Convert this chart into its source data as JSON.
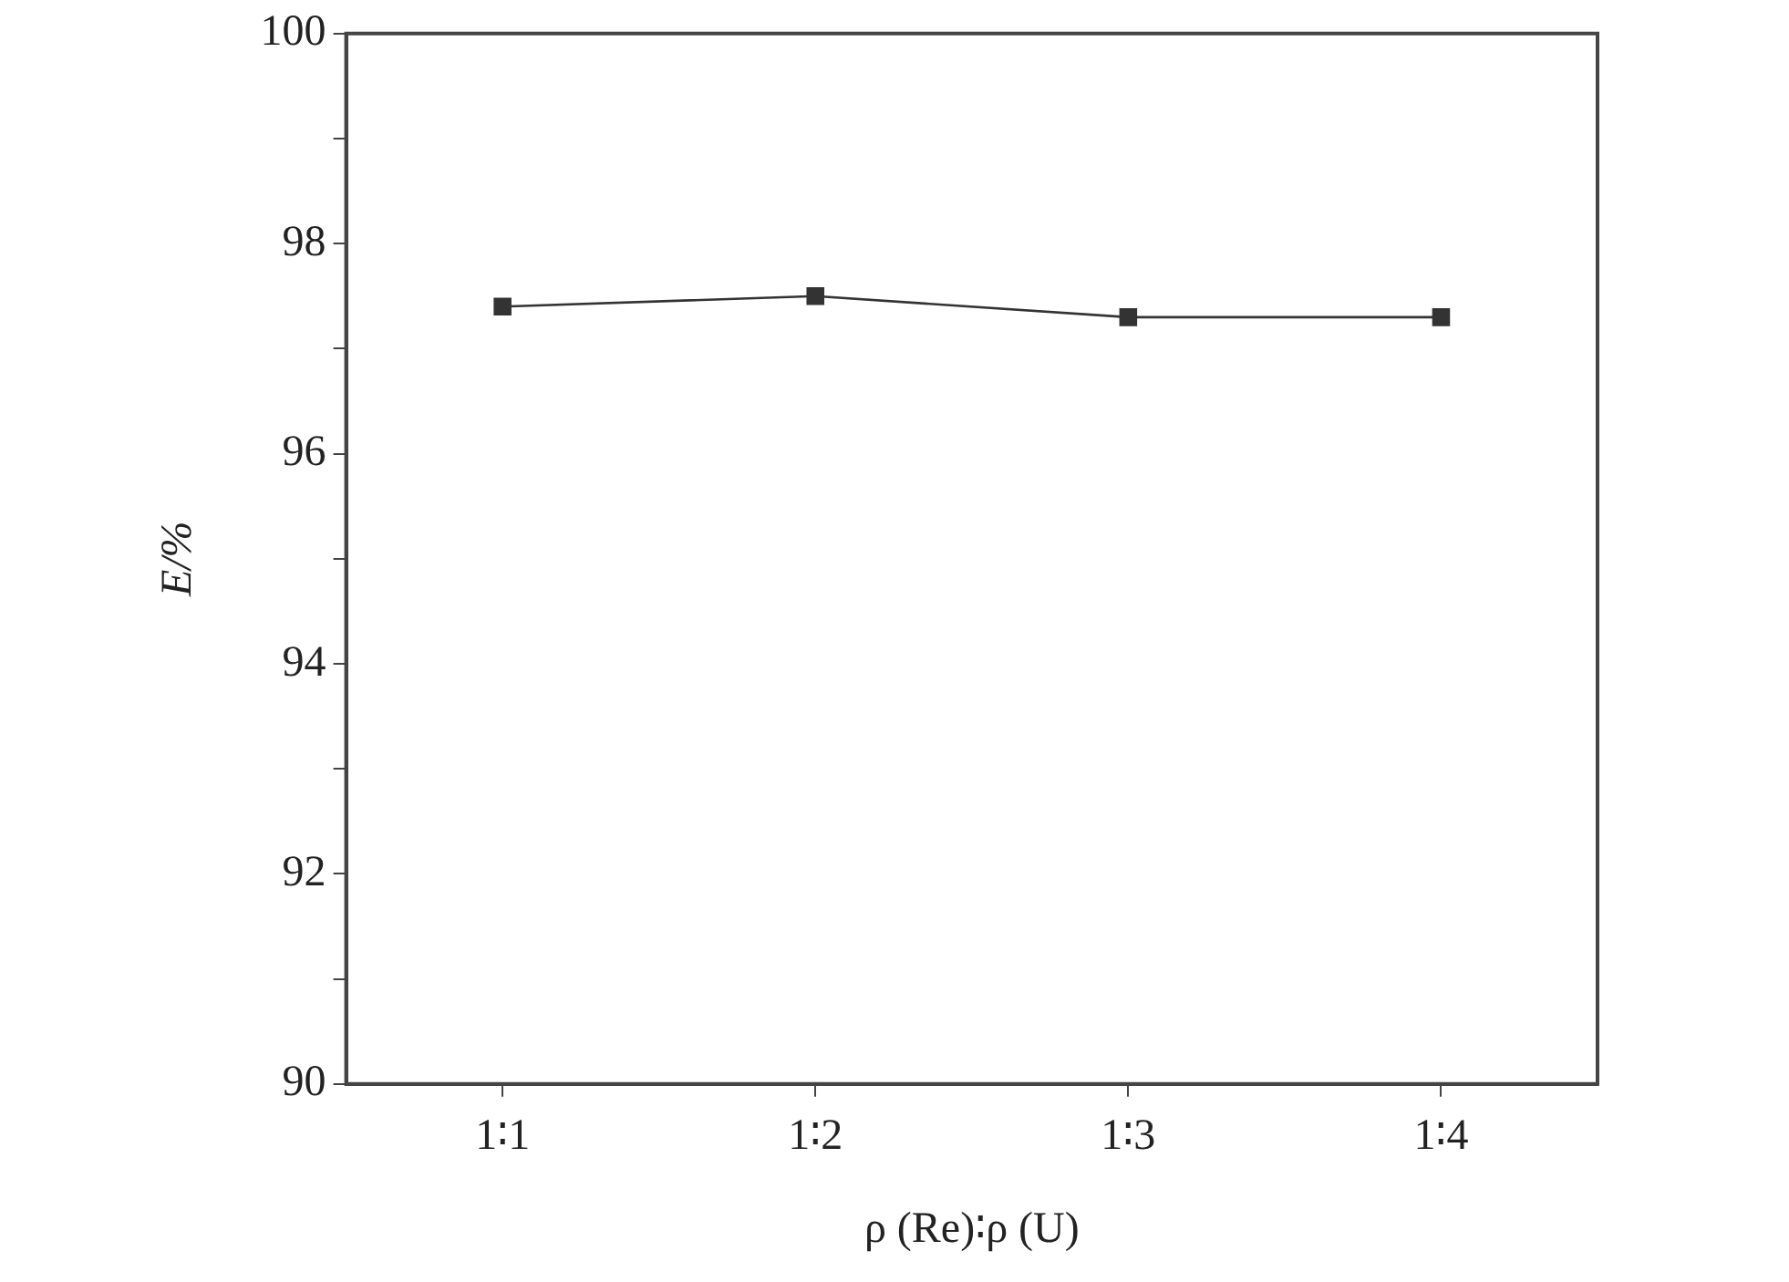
{
  "chart_data": {
    "type": "line",
    "xlabel": "ρ (Re)∶ρ (U)",
    "ylabel": "E/%",
    "categories": [
      "1∶1",
      "1∶2",
      "1∶3",
      "1∶4"
    ],
    "series": [
      {
        "color": "#333333",
        "values": [
          97.4,
          97.5,
          97.3,
          97.3
        ]
      }
    ],
    "ylim": [
      90,
      100
    ],
    "yticks": [
      90,
      {
        "value": 91,
        "label": null
      },
      92,
      {
        "value": 93,
        "label": null
      },
      94,
      {
        "value": 95,
        "label": null
      },
      96,
      {
        "value": 97,
        "label": null
      },
      98,
      {
        "value": 99,
        "label": null
      },
      100
    ],
    "grid": false,
    "legend": false,
    "marker": "square",
    "line_style": "solid"
  }
}
